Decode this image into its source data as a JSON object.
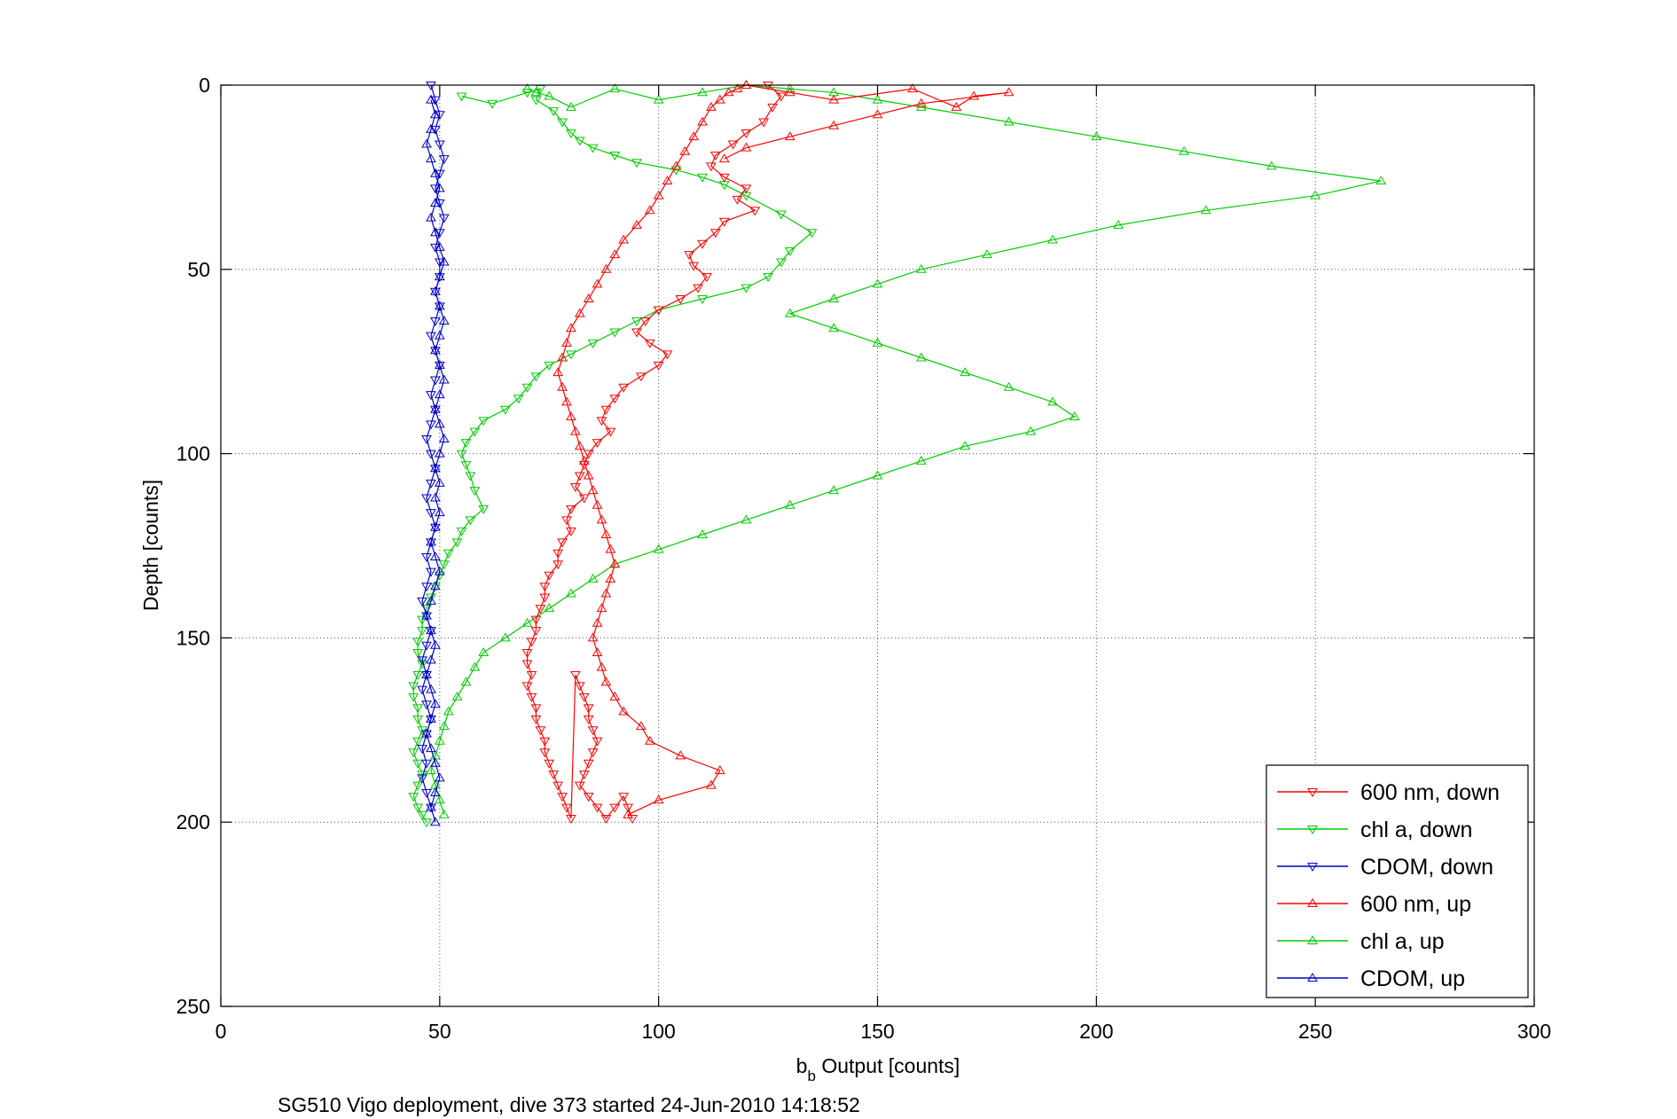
{
  "chart_data": {
    "type": "line",
    "title": "",
    "xlabel_main": "b",
    "xlabel_sub": "b",
    "xlabel_rest": " Output [counts]",
    "ylabel": "Depth [counts]",
    "xlim": [
      0,
      300
    ],
    "ylim": [
      0,
      250
    ],
    "y_reversed": true,
    "xticks": [
      0,
      50,
      100,
      150,
      200,
      250,
      300
    ],
    "yticks": [
      0,
      50,
      100,
      150,
      200,
      250
    ],
    "grid": true,
    "legend_position": "bottom-right",
    "footer": "SG510 Vigo deployment, dive 373 started 24-Jun-2010 14:18:52",
    "series": [
      {
        "name": "600 nm, down",
        "color": "#ff0000",
        "marker": "triangle-down",
        "x": [
          125,
          128,
          126,
          124,
          120,
          117,
          113,
          112,
          115,
          120,
          118,
          122,
          115,
          113,
          110,
          107,
          108,
          111,
          109,
          105,
          100,
          97,
          95,
          98,
          102,
          100,
          96,
          92,
          90,
          88,
          87,
          89,
          86,
          84,
          83,
          82,
          81,
          83,
          80,
          79,
          80,
          78,
          77,
          77,
          75,
          74,
          74,
          73,
          72,
          72,
          71,
          70,
          70,
          71,
          70,
          71,
          72,
          72,
          73,
          74,
          74,
          75,
          76,
          77,
          78,
          79,
          80,
          81,
          82,
          83,
          84,
          84,
          85,
          86,
          85,
          84,
          83,
          82,
          84,
          86,
          88,
          90,
          92,
          93,
          94
        ],
        "y": [
          0,
          3,
          6,
          10,
          13,
          16,
          19,
          22,
          25,
          28,
          31,
          34,
          37,
          40,
          43,
          46,
          49,
          52,
          55,
          58,
          61,
          64,
          67,
          70,
          73,
          76,
          79,
          82,
          85,
          88,
          91,
          94,
          97,
          100,
          103,
          106,
          109,
          112,
          115,
          118,
          121,
          124,
          127,
          130,
          133,
          136,
          139,
          142,
          145,
          148,
          151,
          154,
          157,
          160,
          163,
          166,
          169,
          172,
          175,
          178,
          181,
          184,
          187,
          190,
          193,
          196,
          199,
          160,
          163,
          166,
          169,
          172,
          175,
          178,
          181,
          184,
          187,
          190,
          193,
          196,
          199,
          196,
          193,
          196,
          199
        ]
      },
      {
        "name": "chl a, down",
        "color": "#00cc00",
        "marker": "triangle-down",
        "x": [
          55,
          62,
          70,
          73,
          72,
          76,
          78,
          80,
          82,
          85,
          90,
          95,
          104,
          110,
          115,
          120,
          128,
          135,
          130,
          128,
          125,
          120,
          110,
          100,
          95,
          90,
          85,
          80,
          75,
          72,
          70,
          68,
          65,
          60,
          58,
          56,
          55,
          56,
          57,
          58,
          60,
          57,
          55,
          54,
          52,
          51,
          50,
          49,
          48,
          47,
          46,
          46,
          45,
          45,
          46,
          45,
          44,
          44,
          45,
          45,
          46,
          45,
          44,
          45,
          46,
          45,
          44,
          45,
          46,
          47
        ],
        "y": [
          3,
          5,
          2,
          1,
          4,
          7,
          10,
          13,
          15,
          17,
          19,
          21,
          23,
          25,
          27,
          30,
          35,
          40,
          45,
          48,
          52,
          55,
          58,
          61,
          64,
          67,
          70,
          73,
          76,
          79,
          82,
          85,
          88,
          91,
          94,
          97,
          100,
          103,
          106,
          110,
          115,
          118,
          121,
          124,
          127,
          130,
          133,
          136,
          139,
          142,
          145,
          148,
          151,
          154,
          157,
          160,
          163,
          166,
          169,
          172,
          175,
          178,
          181,
          184,
          187,
          190,
          193,
          196,
          198,
          200
        ]
      },
      {
        "name": "CDOM, down",
        "color": "#0000cc",
        "marker": "triangle-down",
        "x": [
          48,
          49,
          50,
          49,
          50,
          51,
          50,
          49,
          50,
          51,
          50,
          49,
          50,
          50,
          49,
          50,
          49,
          48,
          49,
          50,
          49,
          48,
          49,
          48,
          47,
          48,
          49,
          48,
          47,
          48,
          49,
          48,
          47,
          48,
          47,
          46,
          47,
          48,
          47,
          46,
          47,
          46,
          47,
          48,
          47,
          46,
          47,
          46,
          47,
          48
        ],
        "y": [
          0,
          4,
          8,
          12,
          16,
          20,
          24,
          28,
          32,
          36,
          40,
          44,
          48,
          52,
          56,
          60,
          64,
          68,
          72,
          76,
          80,
          84,
          88,
          92,
          96,
          100,
          104,
          108,
          112,
          116,
          120,
          124,
          128,
          132,
          136,
          140,
          144,
          148,
          152,
          156,
          160,
          164,
          168,
          172,
          176,
          180,
          184,
          188,
          192,
          196
        ]
      },
      {
        "name": "600 nm, up",
        "color": "#ff0000",
        "marker": "triangle-up",
        "x": [
          93,
          100,
          112,
          114,
          105,
          98,
          96,
          92,
          90,
          88,
          87,
          86,
          85,
          86,
          87,
          88,
          89,
          90,
          89,
          88,
          87,
          86,
          85,
          84,
          83,
          82,
          81,
          80,
          79,
          78,
          77,
          78,
          79,
          80,
          82,
          84,
          86,
          88,
          90,
          92,
          95,
          98,
          100,
          102,
          104,
          106,
          108,
          110,
          112,
          114,
          116,
          118,
          120,
          130,
          140,
          158,
          168,
          172,
          180,
          160,
          150,
          140,
          130,
          120,
          115
        ],
        "y": [
          198,
          194,
          190,
          186,
          182,
          178,
          174,
          170,
          166,
          162,
          158,
          154,
          150,
          146,
          142,
          138,
          134,
          130,
          126,
          122,
          118,
          114,
          110,
          106,
          102,
          98,
          94,
          90,
          86,
          82,
          78,
          74,
          70,
          66,
          62,
          58,
          54,
          50,
          46,
          42,
          38,
          34,
          30,
          26,
          22,
          18,
          14,
          10,
          6,
          4,
          2,
          1,
          0,
          2,
          4,
          1,
          6,
          3,
          2,
          5,
          8,
          11,
          14,
          17,
          20
        ]
      },
      {
        "name": "chl a, up",
        "color": "#00cc00",
        "marker": "triangle-up",
        "x": [
          51,
          50,
          49,
          48,
          49,
          50,
          51,
          52,
          54,
          56,
          58,
          60,
          65,
          70,
          75,
          80,
          85,
          90,
          100,
          110,
          120,
          130,
          140,
          150,
          160,
          170,
          185,
          195,
          190,
          180,
          170,
          160,
          150,
          140,
          130,
          140,
          150,
          160,
          175,
          190,
          205,
          225,
          250,
          265,
          240,
          220,
          200,
          180,
          160,
          150,
          140,
          130,
          120,
          110,
          100,
          90,
          80,
          75,
          72,
          70
        ],
        "y": [
          198,
          194,
          190,
          186,
          182,
          178,
          174,
          170,
          166,
          162,
          158,
          154,
          150,
          146,
          142,
          138,
          134,
          130,
          126,
          122,
          118,
          114,
          110,
          106,
          102,
          98,
          94,
          90,
          86,
          82,
          78,
          74,
          70,
          66,
          62,
          58,
          54,
          50,
          46,
          42,
          38,
          34,
          30,
          26,
          22,
          18,
          14,
          10,
          6,
          4,
          2,
          1,
          0,
          2,
          4,
          1,
          6,
          3,
          2,
          1
        ]
      },
      {
        "name": "CDOM, up",
        "color": "#0000cc",
        "marker": "triangle-up",
        "x": [
          49,
          48,
          49,
          50,
          49,
          48,
          47,
          48,
          49,
          48,
          47,
          48,
          49,
          48,
          47,
          48,
          49,
          50,
          49,
          48,
          49,
          50,
          49,
          50,
          49,
          50,
          51,
          50,
          49,
          50,
          51,
          50,
          49,
          50,
          51,
          50,
          49,
          50,
          51,
          50,
          49,
          48,
          49,
          50,
          49,
          48,
          47,
          48,
          49,
          48
        ],
        "y": [
          200,
          196,
          192,
          188,
          184,
          180,
          176,
          172,
          168,
          164,
          160,
          156,
          152,
          148,
          144,
          140,
          136,
          132,
          128,
          124,
          120,
          116,
          112,
          108,
          104,
          100,
          96,
          92,
          88,
          84,
          80,
          76,
          72,
          68,
          64,
          60,
          56,
          52,
          48,
          44,
          40,
          36,
          32,
          28,
          24,
          20,
          16,
          12,
          8,
          4
        ]
      }
    ]
  }
}
